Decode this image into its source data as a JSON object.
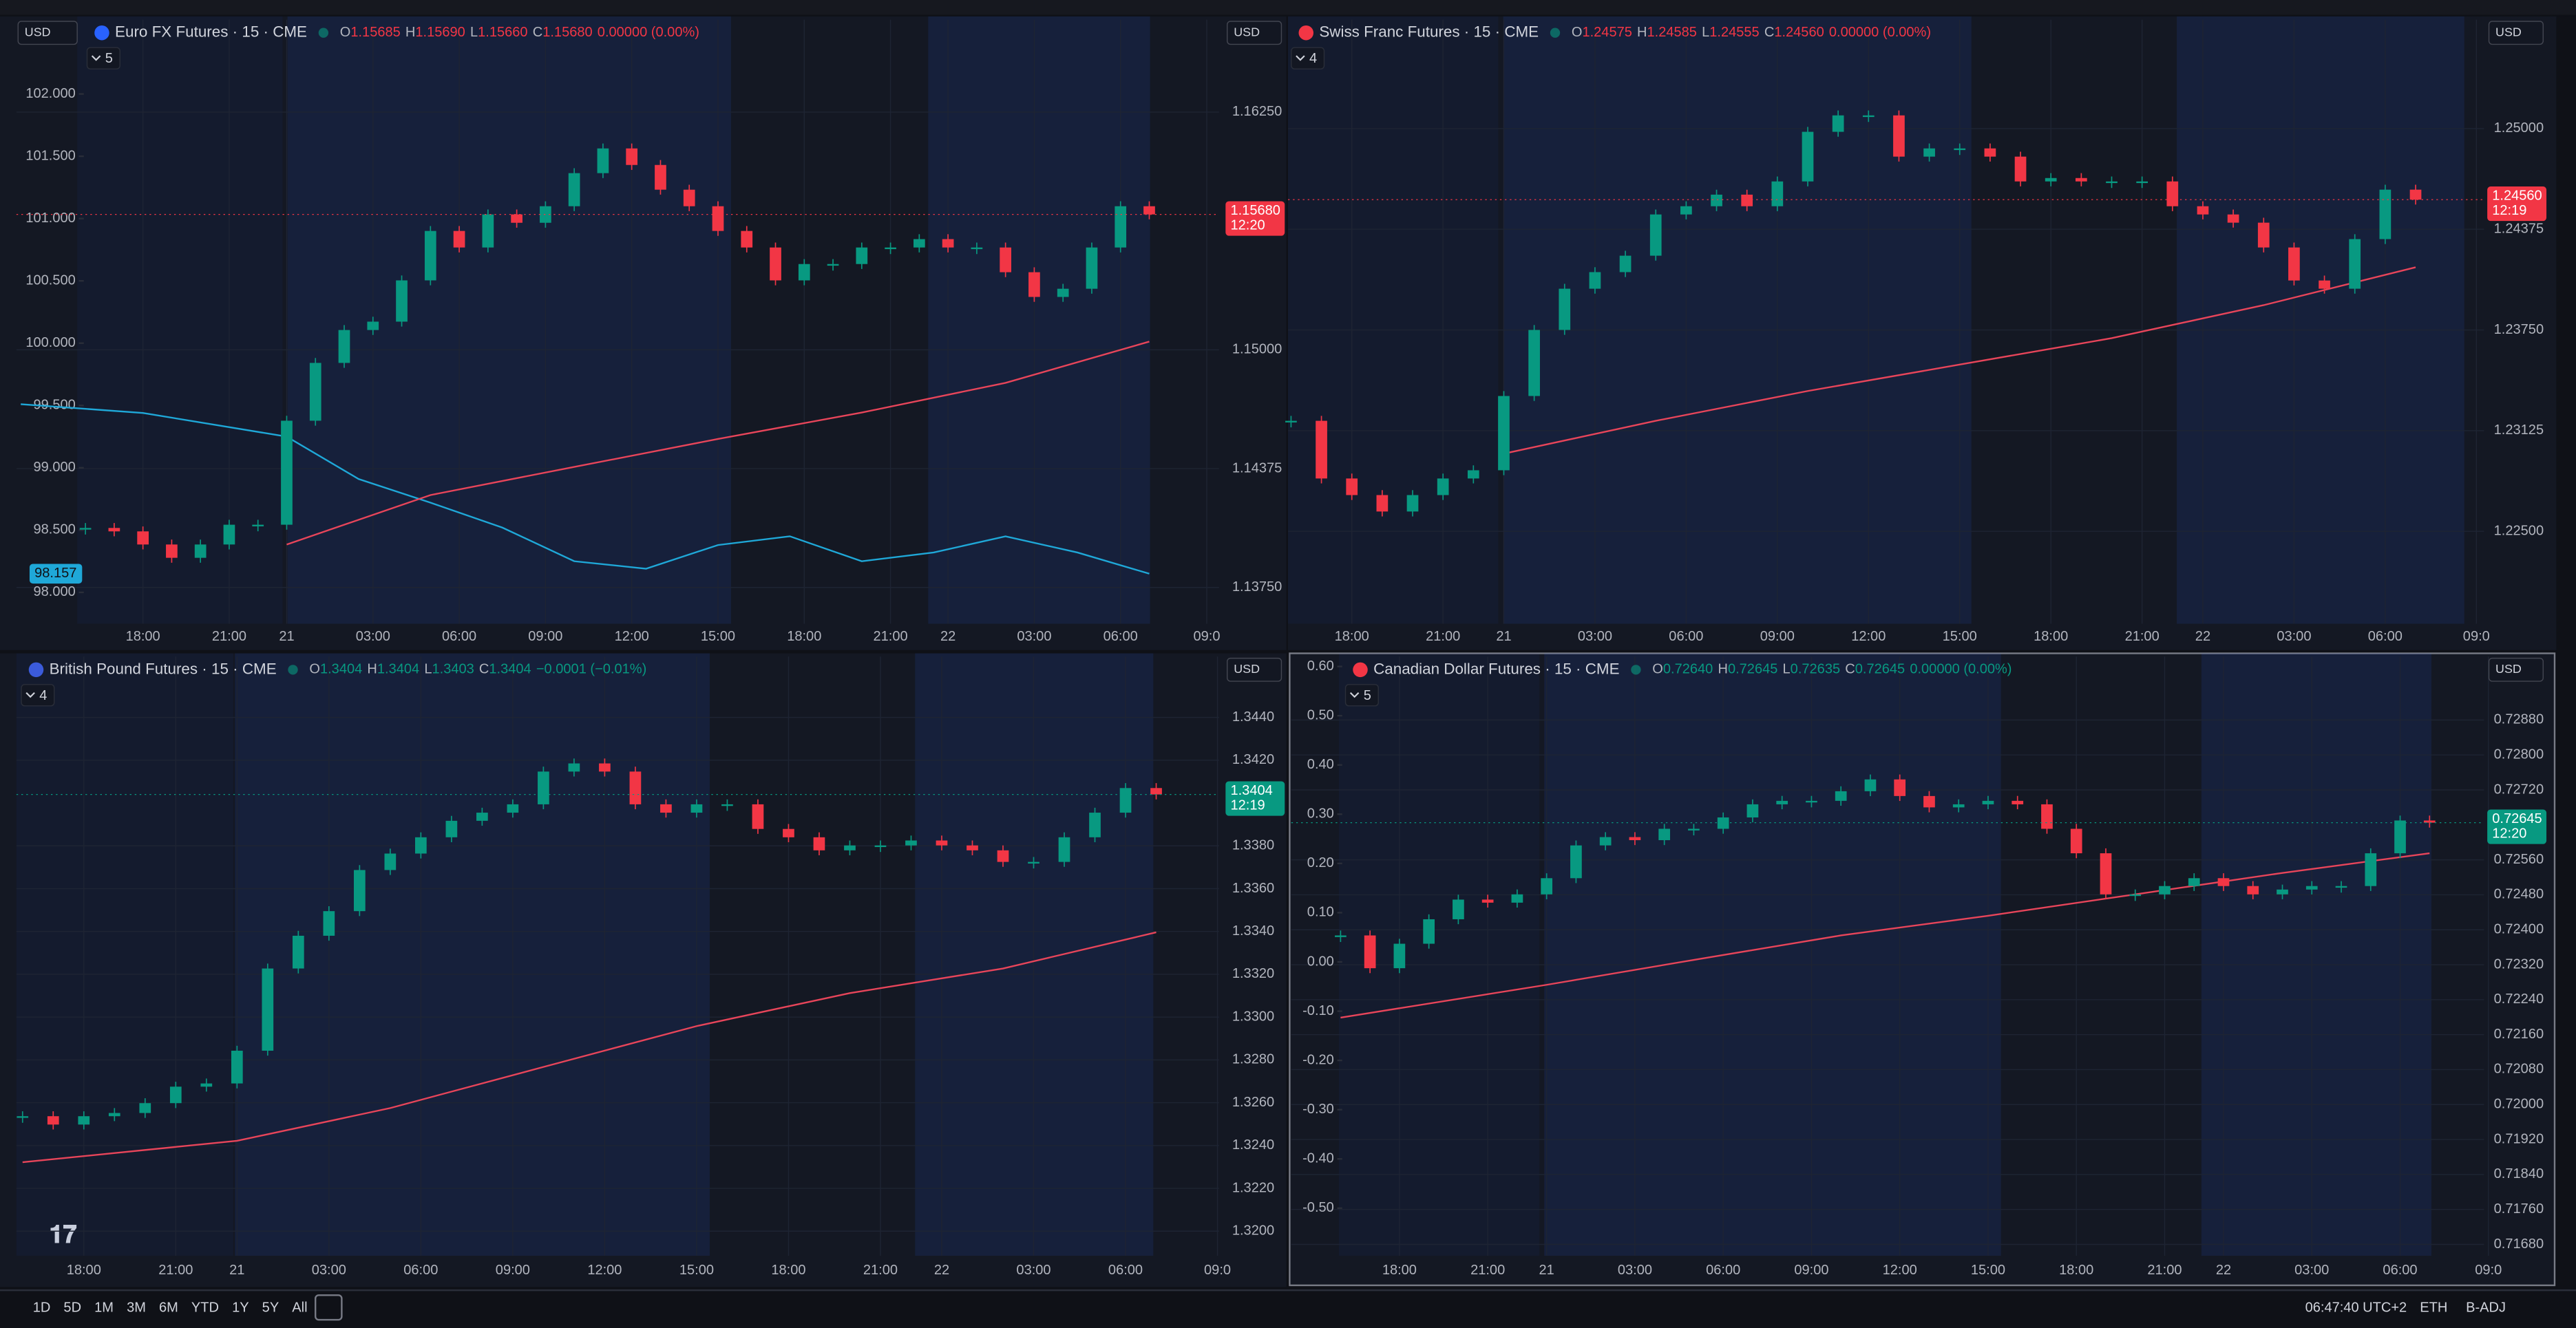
{
  "panels": [
    {
      "left_currency": "USD",
      "currency": "USD",
      "title": "Euro FX Futures · 15 · CME",
      "ohlc": [
        {
          "label": "O",
          "value": "1.15685"
        },
        {
          "label": "H",
          "value": "1.15690"
        },
        {
          "label": "L",
          "value": "1.15660"
        },
        {
          "label": "C",
          "value": "1.15680"
        }
      ],
      "change": "0.00000 (0.00%)",
      "ohlc_color": "#f23645",
      "indicators": "5",
      "last_price": "1.15680",
      "countdown": "12:20",
      "last_color": "#f23645",
      "xlim": [
        -17.6,
        149.7
      ],
      "xticks": [
        {
          "value": 0,
          "label": "18:00"
        },
        {
          "value": 12,
          "label": "21:00"
        },
        {
          "value": 20,
          "label": "21"
        },
        {
          "value": 32,
          "label": "03:00"
        },
        {
          "value": 44,
          "label": "06:00"
        },
        {
          "value": 56,
          "label": "09:00"
        },
        {
          "value": 68,
          "label": "12:00"
        },
        {
          "value": 80,
          "label": "15:00"
        },
        {
          "value": 92,
          "label": "18:00"
        },
        {
          "value": 104,
          "label": "21:00"
        },
        {
          "value": 112,
          "label": "22"
        },
        {
          "value": 124,
          "label": "03:00"
        },
        {
          "value": 136,
          "label": "06:00"
        },
        {
          "value": 148,
          "label": "09:0"
        }
      ],
      "ylim": [
        1.13559,
        1.16736
      ],
      "yticks": [
        {
          "value": 1.1375,
          "label": "1.13750"
        },
        {
          "value": 1.14375,
          "label": "1.14375"
        },
        {
          "value": 1.15,
          "label": "1.15000"
        },
        {
          "value": 1.1625,
          "label": "1.16250"
        }
      ],
      "y2lim": [
        97.748,
        102.596
      ],
      "y2ticks": [
        {
          "value": 98,
          "label": "98.000"
        },
        {
          "value": 98.5,
          "label": "98.500"
        },
        {
          "value": 99,
          "label": "99.000"
        },
        {
          "value": 99.5,
          "label": "99.500"
        },
        {
          "value": 100,
          "label": "100.000"
        },
        {
          "value": 100.5,
          "label": "100.500"
        },
        {
          "value": 101,
          "label": "101.000"
        },
        {
          "value": 101.5,
          "label": "101.500"
        },
        {
          "value": 102,
          "label": "102.000"
        }
      ],
      "price": {
        "x": [
          -8,
          -4,
          0,
          4,
          8,
          12,
          16,
          20,
          24,
          28,
          32,
          36,
          40,
          44,
          48,
          52,
          56,
          60,
          64,
          68,
          72,
          76,
          80,
          84,
          88,
          92,
          96,
          100,
          104,
          108,
          112,
          116,
          120,
          124,
          128,
          132,
          136,
          140
        ],
        "values": [
          1.14063,
          1.14045,
          1.13976,
          1.13906,
          1.13976,
          1.1408,
          1.1408,
          1.14627,
          1.14931,
          1.15104,
          1.15148,
          1.15365,
          1.15625,
          1.15538,
          1.15712,
          1.15668,
          1.15755,
          1.15929,
          1.16059,
          1.15972,
          1.15842,
          1.15755,
          1.15625,
          1.15538,
          1.15365,
          1.15451,
          1.15451,
          1.15538,
          1.15538,
          1.15582,
          1.15538,
          1.15538,
          1.15408,
          1.15278,
          1.15321,
          1.15538,
          1.15755,
          1.15712
        ]
      },
      "ma": {
        "color": "#e8455a",
        "x": [
          20,
          40,
          60,
          80,
          100,
          120,
          140
        ],
        "values": [
          1.13976,
          1.14236,
          1.14384,
          1.14531,
          1.1467,
          1.14826,
          1.15043
        ]
      },
      "compare": {
        "color": "#1fa8d8",
        "x": [
          -17,
          0,
          20,
          30,
          40,
          50,
          60,
          70,
          80,
          90,
          100,
          110,
          120,
          130,
          140
        ],
        "values": [
          99.51,
          99.44,
          99.25,
          98.91,
          98.72,
          98.52,
          98.25,
          98.19,
          98.38,
          98.45,
          98.25,
          98.32,
          98.45,
          98.32,
          98.15
        ],
        "value_label": "98.157"
      }
    },
    {
      "currency": "USD",
      "title": "Swiss Franc Futures · 15 · CME",
      "ohlc": [
        {
          "label": "O",
          "value": "1.24575"
        },
        {
          "label": "H",
          "value": "1.24585"
        },
        {
          "label": "L",
          "value": "1.24555"
        },
        {
          "label": "C",
          "value": "1.24560"
        }
      ],
      "change": "0.00000 (0.00%)",
      "ohlc_color": "#f23645",
      "indicators": "4",
      "last_price": "1.24560",
      "countdown": "12:19",
      "last_color": "#f23645",
      "xlim": [
        -8.4,
        149
      ],
      "xticks": [
        {
          "value": 0,
          "label": "18:00"
        },
        {
          "value": 12,
          "label": "21:00"
        },
        {
          "value": 20,
          "label": "21"
        },
        {
          "value": 32,
          "label": "03:00"
        },
        {
          "value": 44,
          "label": "06:00"
        },
        {
          "value": 56,
          "label": "09:00"
        },
        {
          "value": 68,
          "label": "12:00"
        },
        {
          "value": 80,
          "label": "15:00"
        },
        {
          "value": 92,
          "label": "18:00"
        },
        {
          "value": 104,
          "label": "21:00"
        },
        {
          "value": 112,
          "label": "22"
        },
        {
          "value": 124,
          "label": "03:00"
        },
        {
          "value": 136,
          "label": "06:00"
        },
        {
          "value": 148,
          "label": "09:0"
        }
      ],
      "ylim": [
        1.21926,
        1.25676
      ],
      "yticks": [
        {
          "value": 1.225,
          "label": "1.22500"
        },
        {
          "value": 1.23125,
          "label": "1.23125"
        },
        {
          "value": 1.2375,
          "label": "1.23750"
        },
        {
          "value": 1.24375,
          "label": "1.24375"
        },
        {
          "value": 1.25,
          "label": "1.25000"
        }
      ],
      "price": {
        "x": [
          -8,
          -4,
          0,
          4,
          8,
          12,
          16,
          20,
          24,
          28,
          32,
          36,
          40,
          44,
          48,
          52,
          56,
          60,
          64,
          68,
          72,
          76,
          80,
          84,
          88,
          92,
          96,
          100,
          104,
          108,
          112,
          116,
          120,
          124,
          128,
          132,
          136,
          140
        ],
        "values": [
          1.23186,
          1.22828,
          1.22725,
          1.22623,
          1.22725,
          1.22828,
          1.22879,
          1.2334,
          1.2375,
          1.24006,
          1.24109,
          1.24211,
          1.24467,
          1.24518,
          1.2459,
          1.24518,
          1.24672,
          1.2498,
          1.25082,
          1.25082,
          1.24826,
          1.24877,
          1.24877,
          1.24826,
          1.24672,
          1.24693,
          1.24672,
          1.24672,
          1.24672,
          1.24518,
          1.24467,
          1.24416,
          1.24262,
          1.24057,
          1.24006,
          1.24314,
          1.24621,
          1.24559
        ]
      },
      "ma": {
        "color": "#e8455a",
        "x": [
          20,
          40,
          60,
          80,
          100,
          120,
          140
        ],
        "values": [
          1.22982,
          1.23186,
          1.23371,
          1.23535,
          1.23699,
          1.23904,
          1.24139
        ]
      }
    },
    {
      "currency": "USD",
      "title": "British Pound Futures · 15 · CME",
      "ohlc": [
        {
          "label": "O",
          "value": "1.3404"
        },
        {
          "label": "H",
          "value": "1.3404"
        },
        {
          "label": "L",
          "value": "1.3403"
        },
        {
          "label": "C",
          "value": "1.3404"
        }
      ],
      "change": "−0.0001 (−0.01%)",
      "ohlc_color": "#089981",
      "indicators": "4",
      "last_price": "1.3404",
      "countdown": "12:19",
      "last_color": "#089981",
      "xlim": [
        -8.8,
        148.2
      ],
      "xticks": [
        {
          "value": 0,
          "label": "18:00"
        },
        {
          "value": 12,
          "label": "21:00"
        },
        {
          "value": 20,
          "label": "21"
        },
        {
          "value": 32,
          "label": "03:00"
        },
        {
          "value": 44,
          "label": "06:00"
        },
        {
          "value": 56,
          "label": "09:00"
        },
        {
          "value": 68,
          "label": "12:00"
        },
        {
          "value": 80,
          "label": "15:00"
        },
        {
          "value": 92,
          "label": "18:00"
        },
        {
          "value": 104,
          "label": "21:00"
        },
        {
          "value": 112,
          "label": "22"
        },
        {
          "value": 124,
          "label": "03:00"
        },
        {
          "value": 136,
          "label": "06:00"
        },
        {
          "value": 148,
          "label": "09:0"
        }
      ],
      "ylim": [
        1.31885,
        1.34684
      ],
      "yticks": [
        {
          "value": 1.32,
          "label": "1.3200"
        },
        {
          "value": 1.322,
          "label": "1.3220"
        },
        {
          "value": 1.324,
          "label": "1.3240"
        },
        {
          "value": 1.326,
          "label": "1.3260"
        },
        {
          "value": 1.328,
          "label": "1.3280"
        },
        {
          "value": 1.33,
          "label": "1.3300"
        },
        {
          "value": 1.332,
          "label": "1.3320"
        },
        {
          "value": 1.334,
          "label": "1.3340"
        },
        {
          "value": 1.336,
          "label": "1.3360"
        },
        {
          "value": 1.338,
          "label": "1.3380"
        },
        {
          "value": 1.342,
          "label": "1.3420"
        },
        {
          "value": 1.344,
          "label": "1.3440"
        }
      ],
      "price": {
        "x": [
          -8,
          -4,
          0,
          4,
          8,
          12,
          16,
          20,
          24,
          28,
          32,
          36,
          40,
          44,
          48,
          52,
          56,
          60,
          64,
          68,
          72,
          76,
          80,
          84,
          88,
          92,
          96,
          100,
          104,
          108,
          112,
          116,
          120,
          124,
          128,
          132,
          136,
          140
        ],
        "values": [
          1.32537,
          1.32498,
          1.32537,
          1.32552,
          1.32598,
          1.32675,
          1.3269,
          1.32843,
          1.33227,
          1.3338,
          1.33495,
          1.33687,
          1.33764,
          1.3384,
          1.33917,
          1.33955,
          1.33994,
          1.34147,
          1.34185,
          1.34147,
          1.33994,
          1.33955,
          1.33994,
          1.33994,
          1.33879,
          1.3384,
          1.33779,
          1.33802,
          1.33802,
          1.33825,
          1.33802,
          1.33779,
          1.33725,
          1.33725,
          1.3384,
          1.33955,
          1.3407,
          1.3404
        ]
      },
      "ma": {
        "color": "#e8455a",
        "x": [
          -8,
          20,
          40,
          60,
          80,
          100,
          120,
          140
        ],
        "values": [
          1.32322,
          1.32422,
          1.32575,
          1.32767,
          1.32958,
          1.33112,
          1.33227,
          1.33396
        ]
      }
    },
    {
      "currency": "USD",
      "title": "Canadian Dollar Futures · 15 · CME",
      "ohlc": [
        {
          "label": "O",
          "value": "0.72640"
        },
        {
          "label": "H",
          "value": "0.72645"
        },
        {
          "label": "L",
          "value": "0.72635"
        },
        {
          "label": "C",
          "value": "0.72645"
        }
      ],
      "change": "0.00000 (0.00%)",
      "ohlc_color": "#089981",
      "indicators": "5",
      "last_price": "0.72645",
      "countdown": "12:20",
      "last_color": "#089981",
      "xlim": [
        -14.7,
        147.4
      ],
      "xticks": [
        {
          "value": 0,
          "label": "18:00"
        },
        {
          "value": 12,
          "label": "21:00"
        },
        {
          "value": 20,
          "label": "21"
        },
        {
          "value": 32,
          "label": "03:00"
        },
        {
          "value": 44,
          "label": "06:00"
        },
        {
          "value": 56,
          "label": "09:00"
        },
        {
          "value": 68,
          "label": "12:00"
        },
        {
          "value": 80,
          "label": "15:00"
        },
        {
          "value": 92,
          "label": "18:00"
        },
        {
          "value": 104,
          "label": "21:00"
        },
        {
          "value": 112,
          "label": "22"
        },
        {
          "value": 124,
          "label": "03:00"
        },
        {
          "value": 136,
          "label": "06:00"
        },
        {
          "value": 148,
          "label": "09:0"
        }
      ],
      "ylim": [
        0.71654,
        0.73025
      ],
      "yticks": [
        {
          "value": 0.7168,
          "label": "0.71680"
        },
        {
          "value": 0.7176,
          "label": "0.71760"
        },
        {
          "value": 0.7184,
          "label": "0.71840"
        },
        {
          "value": 0.7192,
          "label": "0.71920"
        },
        {
          "value": 0.72,
          "label": "0.72000"
        },
        {
          "value": 0.7208,
          "label": "0.72080"
        },
        {
          "value": 0.7216,
          "label": "0.72160"
        },
        {
          "value": 0.7224,
          "label": "0.72240"
        },
        {
          "value": 0.7232,
          "label": "0.72320"
        },
        {
          "value": 0.724,
          "label": "0.72400"
        },
        {
          "value": 0.7248,
          "label": "0.72480"
        },
        {
          "value": 0.7256,
          "label": "0.72560"
        },
        {
          "value": 0.7272,
          "label": "0.72720"
        },
        {
          "value": 0.728,
          "label": "0.72800"
        },
        {
          "value": 0.7288,
          "label": "0.72880"
        }
      ],
      "y2lim": [
        -0.5967,
        0.62
      ],
      "y2ticks": [
        {
          "value": 0.6,
          "label": "0.60"
        },
        {
          "value": 0.5,
          "label": "0.50"
        },
        {
          "value": 0.4,
          "label": "0.40"
        },
        {
          "value": 0.3,
          "label": "0.30"
        },
        {
          "value": 0.2,
          "label": "0.20"
        },
        {
          "value": 0.1,
          "label": "0.10"
        },
        {
          "value": 0,
          "label": "0.00"
        },
        {
          "value": -0.1,
          "label": "-0.10"
        },
        {
          "value": -0.2,
          "label": "-0.20"
        },
        {
          "value": -0.3,
          "label": "-0.30"
        },
        {
          "value": -0.4,
          "label": "-0.40"
        },
        {
          "value": -0.5,
          "label": "-0.50"
        }
      ],
      "price": {
        "x": [
          -8,
          -4,
          0,
          4,
          8,
          12,
          16,
          20,
          24,
          28,
          32,
          36,
          40,
          44,
          48,
          52,
          56,
          60,
          64,
          68,
          72,
          76,
          80,
          84,
          88,
          92,
          96,
          100,
          104,
          108,
          112,
          116,
          120,
          124,
          128,
          132,
          136,
          140
        ],
        "values": [
          0.72387,
          0.72312,
          0.72368,
          0.72424,
          0.72469,
          0.72462,
          0.72481,
          0.72518,
          0.72593,
          0.72612,
          0.72605,
          0.72631,
          0.72631,
          0.72657,
          0.72687,
          0.72695,
          0.72695,
          0.72717,
          0.72744,
          0.72706,
          0.7268,
          0.72687,
          0.72695,
          0.72687,
          0.72631,
          0.72575,
          0.72481,
          0.72481,
          0.725,
          0.72518,
          0.725,
          0.72481,
          0.72492,
          0.725,
          0.725,
          0.72575,
          0.7265,
          0.72645
        ]
      },
      "ma": {
        "color": "#e8455a",
        "x": [
          -8,
          20,
          40,
          60,
          80,
          100,
          120,
          140
        ],
        "values": [
          0.72199,
          0.72274,
          0.72331,
          0.72387,
          0.72432,
          0.72481,
          0.7253,
          0.72575
        ]
      }
    }
  ],
  "bottom_bar": {
    "ranges": [
      "1D",
      "5D",
      "1M",
      "3M",
      "6M",
      "YTD",
      "1Y",
      "5Y",
      "All"
    ],
    "clock": "06:47:40 UTC+2",
    "session": "ETH",
    "adjust": "B-ADJ"
  }
}
